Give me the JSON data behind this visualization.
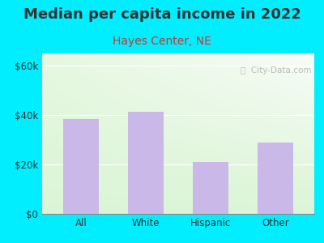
{
  "title": "Median per capita income in 2022",
  "subtitle": "Hayes Center, NE",
  "categories": [
    "All",
    "White",
    "Hispanic",
    "Other"
  ],
  "values": [
    38500,
    41500,
    21000,
    29000
  ],
  "bar_color": "#c9b8e8",
  "title_color": "#333333",
  "subtitle_color": "#cc3333",
  "bg_outer": "#00eeff",
  "ylim": [
    0,
    65000
  ],
  "yticks": [
    0,
    20000,
    40000,
    60000
  ],
  "ytick_labels": [
    "$0",
    "$20k",
    "$40k",
    "$60k"
  ],
  "watermark": "ⓘ  City-Data.com",
  "title_fontsize": 13,
  "subtitle_fontsize": 10,
  "tick_fontsize": 8.5
}
